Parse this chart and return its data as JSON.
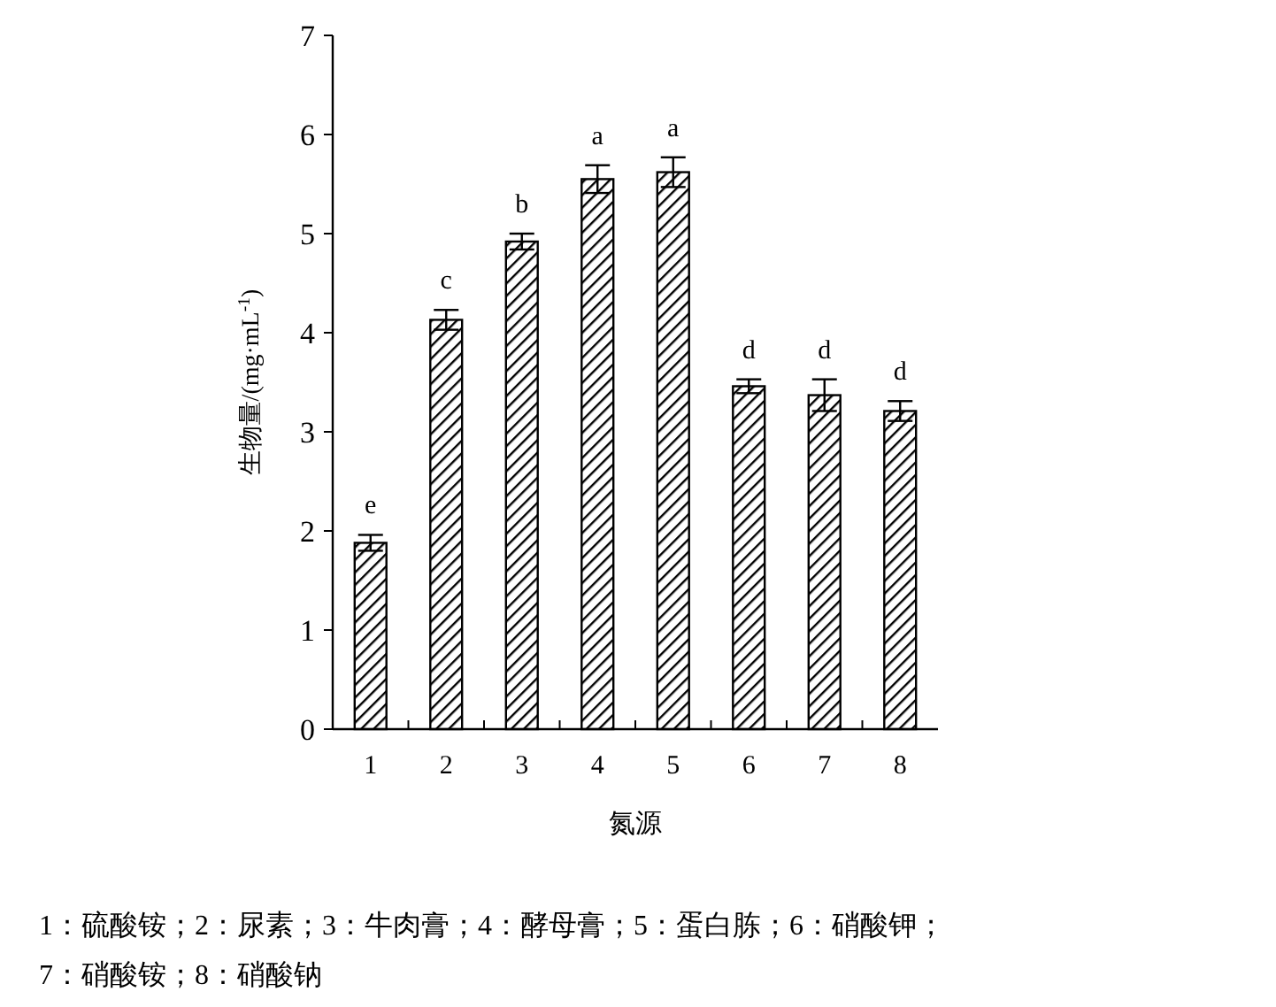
{
  "chart_data": {
    "type": "bar",
    "xlabel": "氮源",
    "ylabel": "生物量/(mg·mL$^{-1}$)",
    "categories": [
      "1",
      "2",
      "3",
      "4",
      "5",
      "6",
      "7",
      "8"
    ],
    "values": [
      1.88,
      4.13,
      4.92,
      5.55,
      5.62,
      3.46,
      3.37,
      3.21
    ],
    "errors": [
      0.08,
      0.1,
      0.08,
      0.14,
      0.15,
      0.07,
      0.16,
      0.1
    ],
    "color": "#000000",
    "ylim": [
      0,
      7
    ],
    "yticks": [
      0,
      1,
      2,
      3,
      4,
      5,
      6,
      7
    ],
    "grid": false,
    "annotations": [
      {
        "text": "e",
        "x": "1",
        "y": 1.96
      },
      {
        "text": "c",
        "x": "2",
        "y": 4.23
      },
      {
        "text": "b",
        "x": "3",
        "y": 5.0
      },
      {
        "text": "a",
        "x": "4",
        "y": 5.69
      },
      {
        "text": "a",
        "x": "5",
        "y": 5.77
      },
      {
        "text": "d",
        "x": "6",
        "y": 3.53
      },
      {
        "text": "d",
        "x": "7",
        "y": 3.53
      },
      {
        "text": "d",
        "x": "8",
        "y": 3.31
      },
      "1：硫酸铵；2：尿素；3：牛肉膏；4：酵母膏；5：蛋白胨；6：硝酸钾；",
      "7：硝酸铵；8：硝酸钠"
    ]
  }
}
